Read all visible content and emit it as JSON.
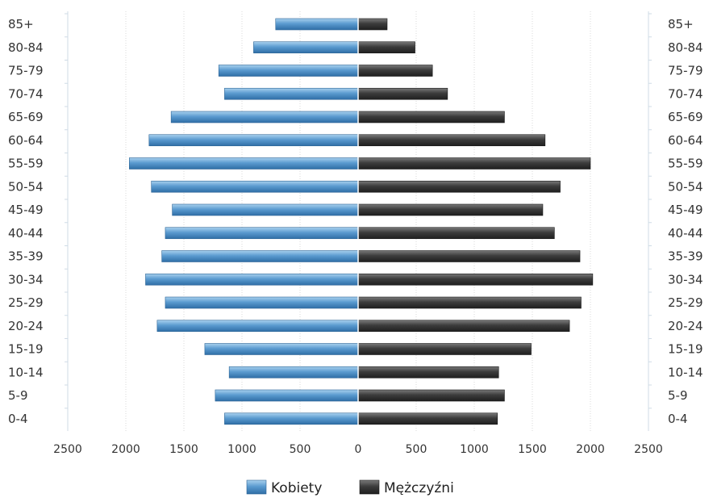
{
  "chart_data": {
    "type": "bar",
    "orientation": "horizontal-population-pyramid",
    "categories": [
      "0-4",
      "5-9",
      "10-14",
      "15-19",
      "20-24",
      "25-29",
      "30-34",
      "35-39",
      "40-44",
      "45-49",
      "50-54",
      "55-59",
      "60-64",
      "65-69",
      "70-74",
      "75-79",
      "80-84",
      "85+"
    ],
    "series": [
      {
        "name": "Kobiety",
        "side": "left",
        "color": "#4d8fc4",
        "values": [
          1150,
          1230,
          1110,
          1320,
          1730,
          1660,
          1830,
          1690,
          1660,
          1600,
          1780,
          1970,
          1800,
          1610,
          1150,
          1200,
          900,
          710
        ]
      },
      {
        "name": "Mężczyźni",
        "side": "right",
        "color": "#3a3a3a",
        "values": [
          1200,
          1260,
          1210,
          1490,
          1820,
          1920,
          2020,
          1910,
          1690,
          1590,
          1740,
          2000,
          1610,
          1260,
          770,
          640,
          490,
          250
        ]
      }
    ],
    "xlim": [
      -2500,
      2500
    ],
    "x_ticks": [
      "2500",
      "2000",
      "1500",
      "1000",
      "500",
      "0",
      "500",
      "1000",
      "1500",
      "2000",
      "2500"
    ],
    "x_tick_values": [
      -2500,
      -2000,
      -1500,
      -1000,
      -500,
      0,
      500,
      1000,
      1500,
      2000,
      2500
    ],
    "grid": true,
    "legend_position": "bottom-center",
    "category_labels_both_sides": true
  }
}
